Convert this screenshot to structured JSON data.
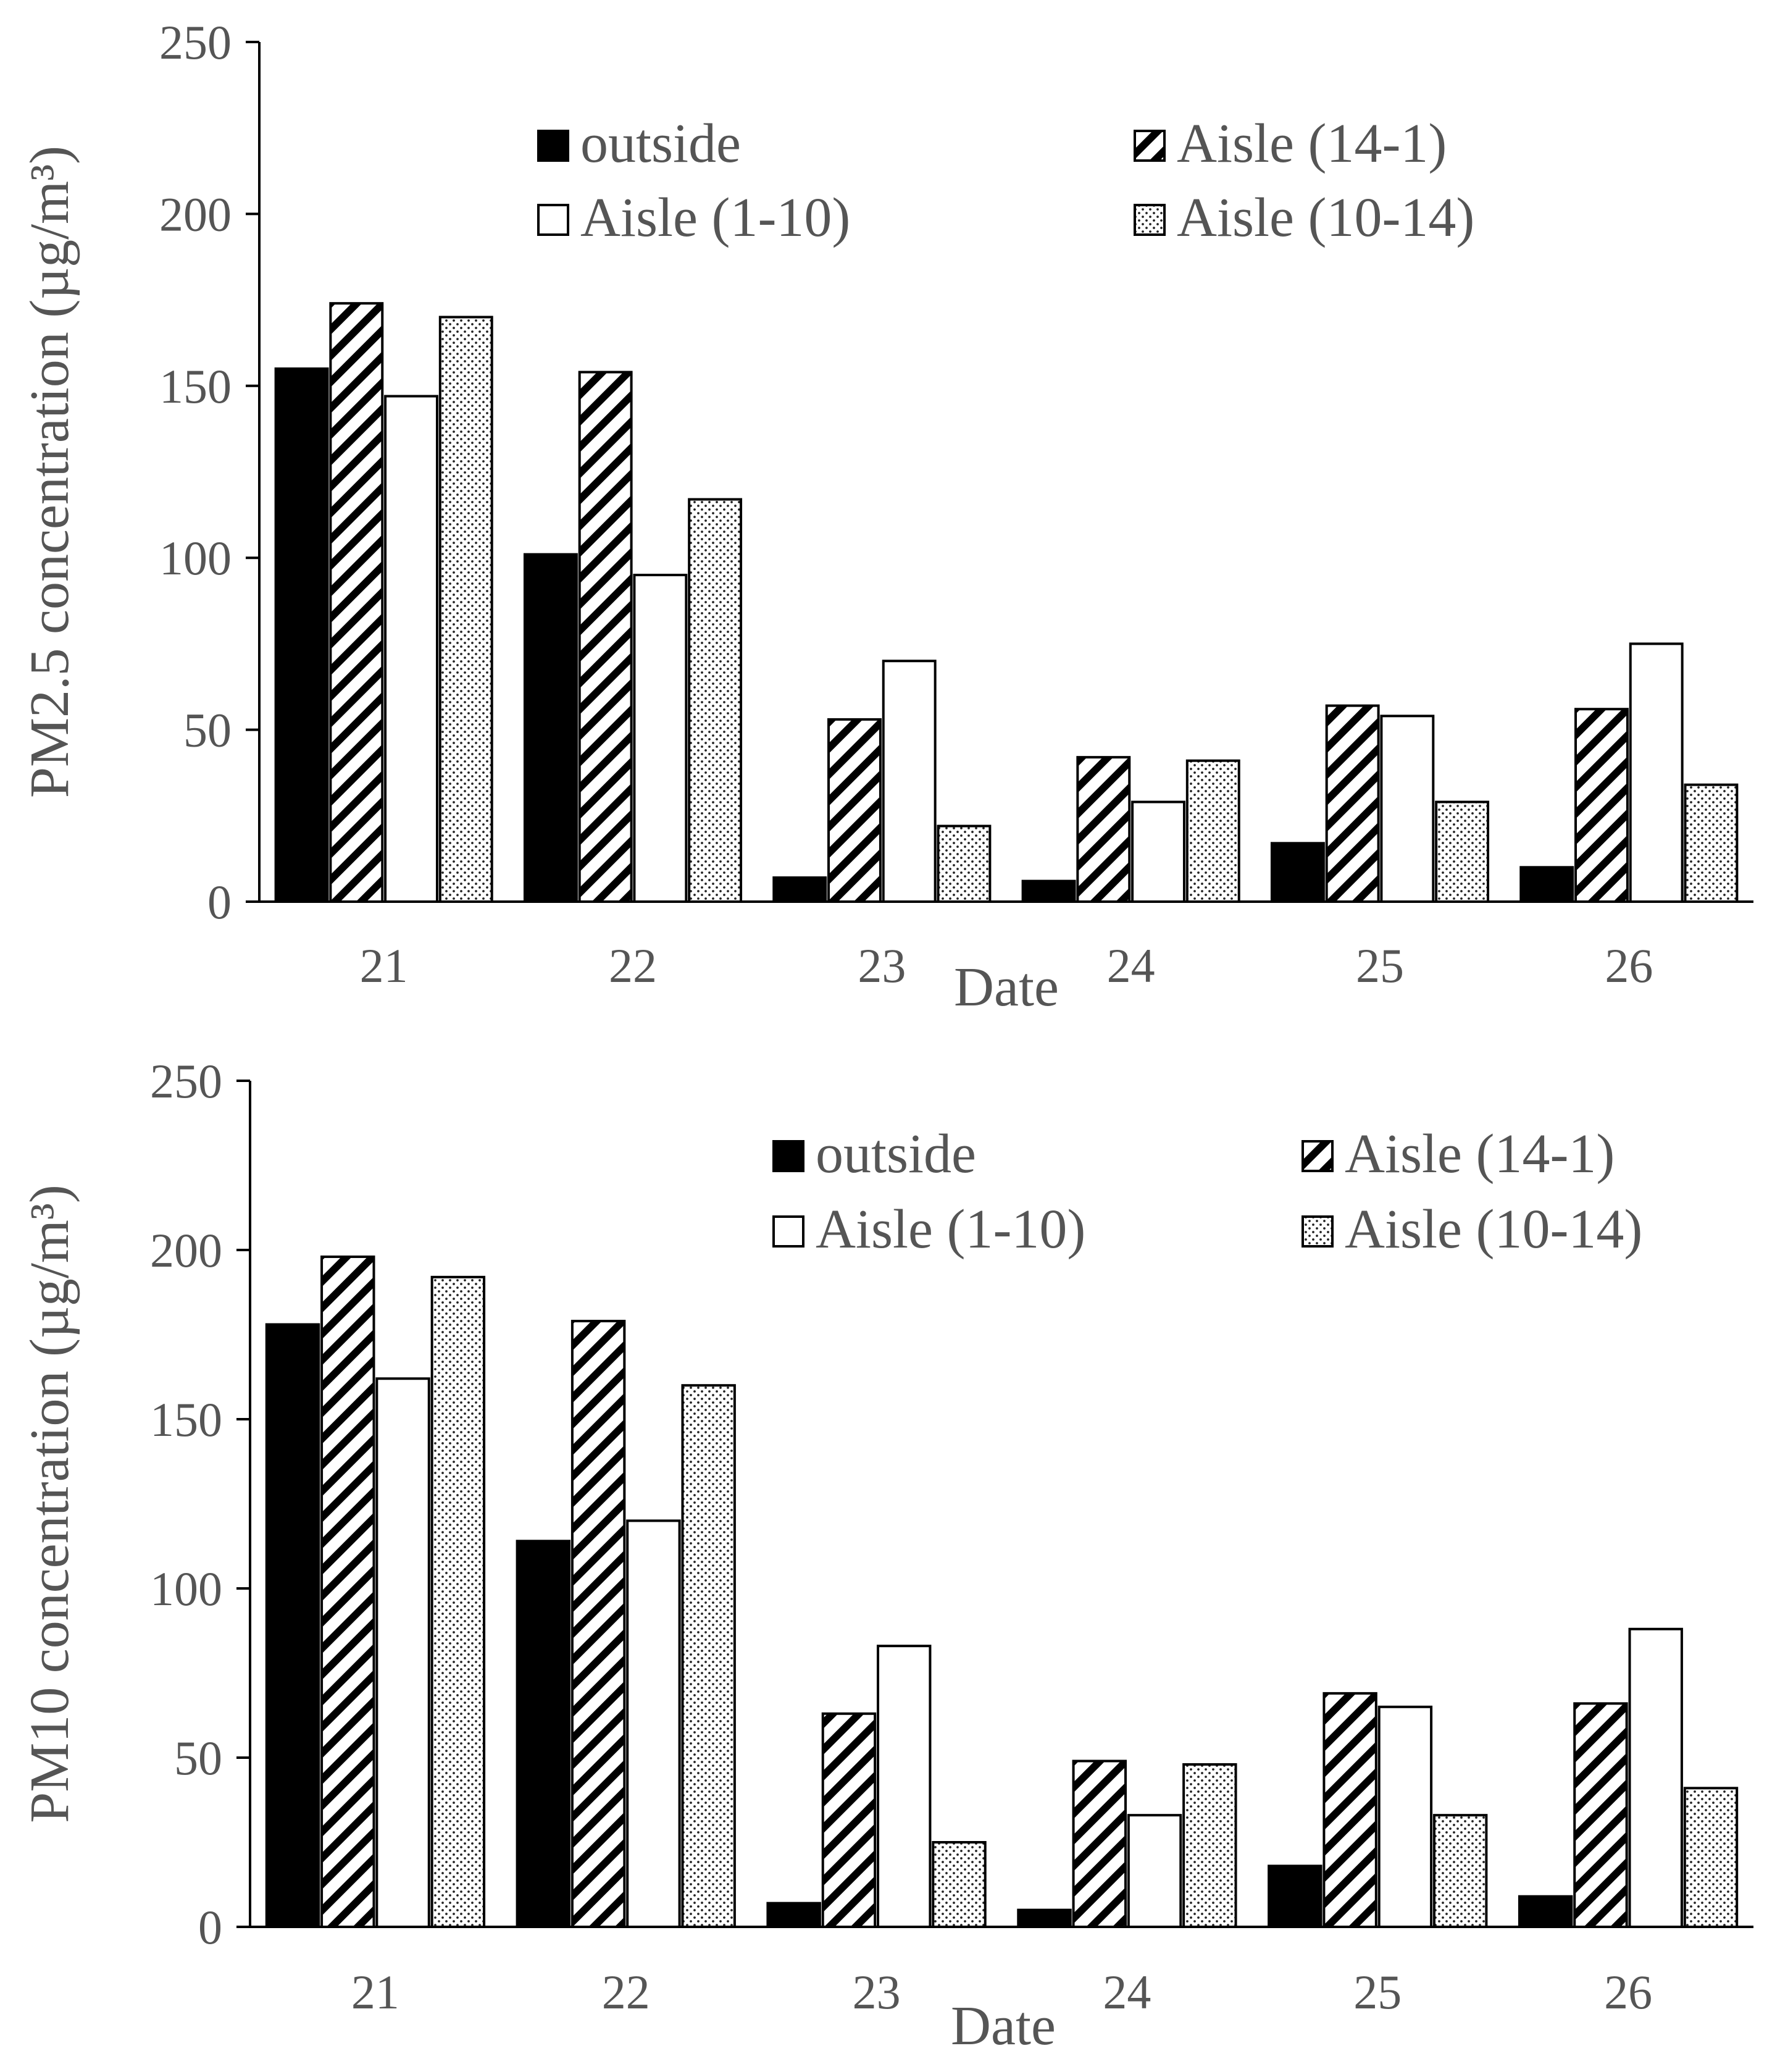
{
  "chart_data": [
    {
      "type": "bar",
      "ylabel": "PM2.5 concentration (µg/m³)",
      "xlabel": "Date",
      "categories": [
        "21",
        "22",
        "23",
        "24",
        "25",
        "26"
      ],
      "ylim": [
        0,
        250
      ],
      "yticks": [
        0,
        50,
        100,
        150,
        200,
        250
      ],
      "series": [
        {
          "name": "outside",
          "pattern": "solid",
          "values": [
            155,
            101,
            7,
            6,
            17,
            10
          ]
        },
        {
          "name": "Aisle (14-1)",
          "pattern": "hatch",
          "values": [
            174,
            154,
            53,
            42,
            57,
            56
          ]
        },
        {
          "name": "Aisle (1-10)",
          "pattern": "white",
          "values": [
            147,
            95,
            70,
            29,
            54,
            75
          ]
        },
        {
          "name": "Aisle (10-14)",
          "pattern": "dots",
          "values": [
            170,
            117,
            22,
            41,
            29,
            34
          ]
        }
      ],
      "legend_order": [
        "outside",
        "Aisle (14-1)",
        "Aisle (1-10)",
        "Aisle (10-14)"
      ],
      "legend_position": "top-center"
    },
    {
      "type": "bar",
      "ylabel": "PM10 concentration (µg/m³)",
      "xlabel": "Date",
      "categories": [
        "21",
        "22",
        "23",
        "24",
        "25",
        "26"
      ],
      "ylim": [
        0,
        250
      ],
      "yticks": [
        0,
        50,
        100,
        150,
        200,
        250
      ],
      "series": [
        {
          "name": "outside",
          "pattern": "solid",
          "values": [
            178,
            114,
            7,
            5,
            18,
            9
          ]
        },
        {
          "name": "Aisle (14-1)",
          "pattern": "hatch",
          "values": [
            198,
            179,
            63,
            49,
            69,
            66
          ]
        },
        {
          "name": "Aisle (1-10)",
          "pattern": "white",
          "values": [
            162,
            120,
            83,
            33,
            65,
            88
          ]
        },
        {
          "name": "Aisle (10-14)",
          "pattern": "dots",
          "values": [
            192,
            160,
            25,
            48,
            33,
            41
          ]
        }
      ],
      "legend_order": [
        "outside",
        "Aisle (14-1)",
        "Aisle (1-10)",
        "Aisle (10-14)"
      ],
      "legend_position": "top-center"
    }
  ]
}
